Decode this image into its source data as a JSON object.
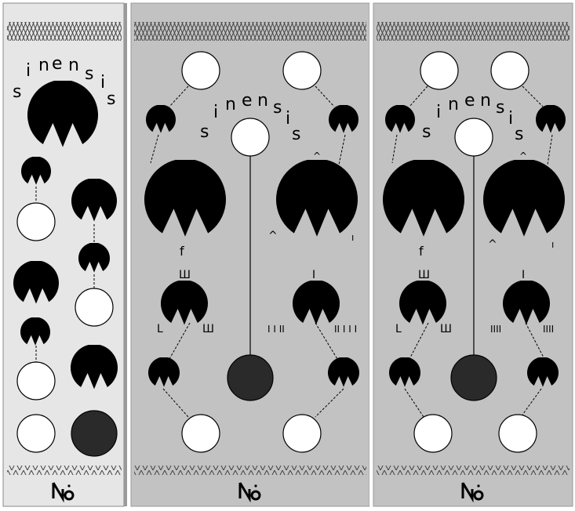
{
  "colors": {
    "panel_left": "#e6e6e6",
    "panel_mid": "#c2c2c2",
    "panel_right": "#c2c2c2",
    "knob_black": "#000000",
    "jack_fill": "#ffffff",
    "led_dark": "#2a2a2a"
  },
  "panels": [
    {
      "title_letters": [
        "s",
        "i",
        "n",
        "e",
        "n",
        "s",
        "i",
        "s"
      ],
      "logo": "n-icon"
    },
    {
      "title_letters": [
        "s",
        "i",
        "n",
        "e",
        "n",
        "s",
        "i",
        "s"
      ],
      "logo": "n-icon",
      "labels": {
        "big_knob_left": "f",
        "big_knob_right_top": "^",
        "big_knob_right_bottom_left": "^",
        "big_knob_right_bottom_right": "ı",
        "small_knob_left_top": "Ш",
        "small_knob_left_bottom_left": "L",
        "small_knob_left_bottom_right": "Ш",
        "small_knob_right_top": "I",
        "small_knob_right_bottom_left": "I I II",
        "small_knob_right_bottom_right": "II I I I"
      }
    },
    {
      "title_letters": [
        "s",
        "i",
        "n",
        "e",
        "n",
        "s",
        "i",
        "s"
      ],
      "logo": "n-icon",
      "labels": {
        "big_knob_left": "f",
        "big_knob_right_top": "^",
        "big_knob_right_bottom_left": "^",
        "big_knob_right_bottom_right": "ı",
        "small_knob_left_top": "Ш",
        "small_knob_left_bottom_left": "L",
        "small_knob_left_bottom_right": "Ш",
        "small_knob_right_top": "I",
        "small_knob_right_bottom_left": "IIII",
        "small_knob_right_bottom_right": "IIII"
      }
    }
  ]
}
